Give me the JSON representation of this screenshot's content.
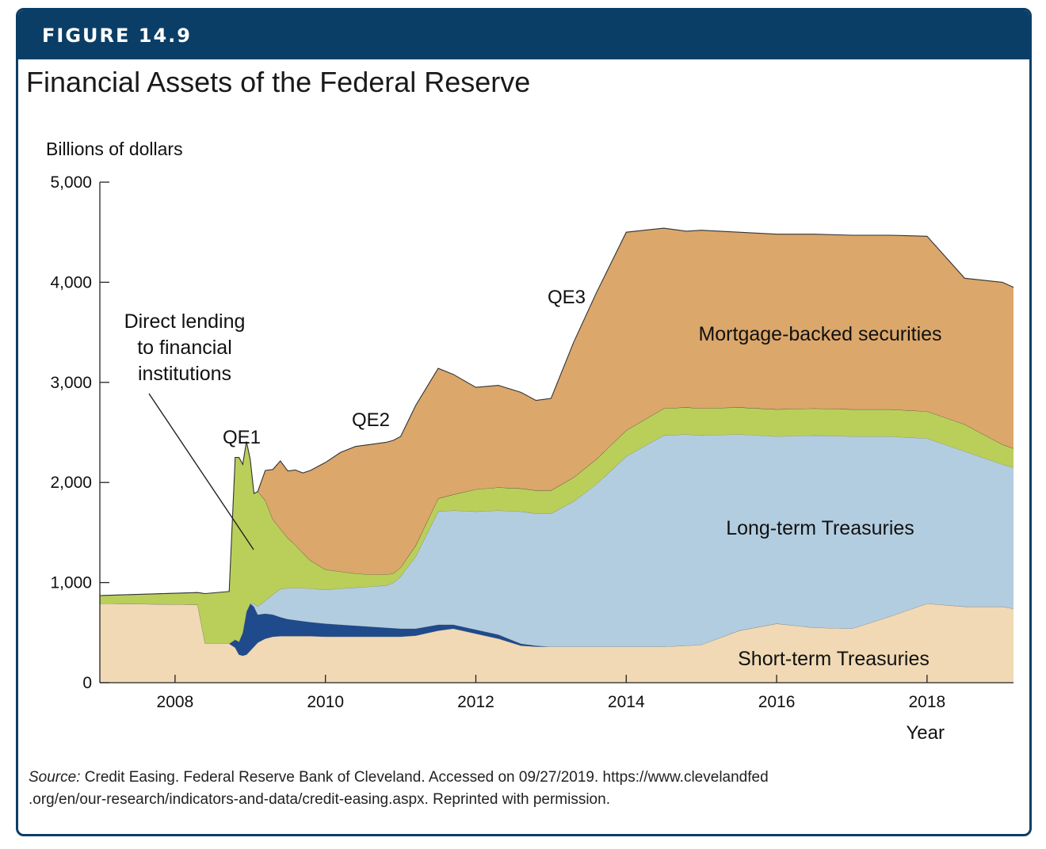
{
  "figure_label": "FIGURE 14.9",
  "source": {
    "label": "Source:",
    "text": "Credit Easing. Federal Reserve Bank of Cleveland. Accessed on 09/27/2019. https://www.clevelandfed",
    "text2": ".org/en/our-research/indicators-and-data/credit-easing.aspx. Reprinted with permission."
  },
  "colors": {
    "short_term": "#f0d9b4",
    "dark_blue": "#1f4a8c",
    "long_term": "#b3cde0",
    "green": "#b9cf5a",
    "mbs": "#dba76b",
    "frame": "#0b3e66"
  },
  "chart_data": {
    "type": "area",
    "stacked": true,
    "title": "Financial Assets of the Federal Reserve",
    "ylabel": "Billions of dollars",
    "xlabel": "Year",
    "xlim": [
      2007.0,
      2019.15
    ],
    "ylim": [
      0,
      5000
    ],
    "xticks": [
      2008,
      2010,
      2012,
      2014,
      2016,
      2018
    ],
    "yticks": [
      0,
      1000,
      2000,
      3000,
      4000,
      5000
    ],
    "ytick_labels": [
      "0",
      "1,000",
      "2,000",
      "3,000",
      "4,000",
      "5,000"
    ],
    "x": [
      2007.0,
      2008.3,
      2008.4,
      2008.7,
      2008.72,
      2008.8,
      2008.85,
      2008.9,
      2008.95,
      2009.0,
      2009.05,
      2009.1,
      2009.2,
      2009.3,
      2009.4,
      2009.5,
      2009.6,
      2009.7,
      2009.8,
      2010.0,
      2010.2,
      2010.4,
      2010.6,
      2010.8,
      2010.9,
      2011.0,
      2011.2,
      2011.5,
      2011.7,
      2012.0,
      2012.3,
      2012.6,
      2012.8,
      2013.0,
      2013.3,
      2013.6,
      2014.0,
      2014.5,
      2014.8,
      2015.0,
      2015.5,
      2016.0,
      2016.5,
      2017.0,
      2017.5,
      2018.0,
      2018.5,
      2019.0,
      2019.15
    ],
    "annotations": [
      "QE1",
      "QE2",
      "QE3",
      "Direct lending to financial institutions"
    ],
    "series": [
      {
        "name": "Short-term Treasuries",
        "values": [
          790,
          780,
          390,
          390,
          390,
          350,
          280,
          270,
          280,
          320,
          360,
          400,
          440,
          460,
          465,
          465,
          465,
          465,
          465,
          460,
          460,
          460,
          460,
          460,
          460,
          460,
          470,
          520,
          540,
          490,
          440,
          370,
          360,
          360,
          360,
          360,
          360,
          360,
          370,
          380,
          520,
          590,
          550,
          540,
          660,
          790,
          760,
          760,
          740
        ]
      },
      {
        "name": "",
        "values": [
          0,
          0,
          0,
          0,
          0,
          80,
          130,
          230,
          430,
          470,
          400,
          280,
          250,
          220,
          190,
          170,
          160,
          150,
          140,
          130,
          120,
          110,
          100,
          90,
          85,
          80,
          70,
          60,
          40,
          40,
          40,
          20,
          10,
          0,
          0,
          0,
          0,
          0,
          0,
          0,
          0,
          0,
          0,
          0,
          0,
          0,
          0,
          0,
          0
        ]
      },
      {
        "name": "Long-term Treasuries",
        "values": [
          0,
          0,
          0,
          0,
          0,
          0,
          0,
          0,
          0,
          0,
          30,
          80,
          130,
          200,
          280,
          310,
          320,
          330,
          335,
          340,
          360,
          380,
          400,
          420,
          450,
          520,
          720,
          1130,
          1140,
          1180,
          1240,
          1320,
          1320,
          1330,
          1450,
          1620,
          1900,
          2110,
          2110,
          2090,
          1960,
          1870,
          1920,
          1920,
          1800,
          1650,
          1550,
          1420,
          1410
        ]
      },
      {
        "name": "",
        "values": [
          80,
          120,
          500,
          520,
          520,
          1820,
          1840,
          1680,
          1700,
          1440,
          1100,
          1150,
          1000,
          750,
          600,
          500,
          430,
          350,
          280,
          200,
          170,
          140,
          120,
          110,
          95,
          90,
          110,
          130,
          160,
          220,
          230,
          230,
          230,
          230,
          240,
          250,
          260,
          270,
          270,
          270,
          270,
          270,
          270,
          270,
          270,
          270,
          270,
          200,
          190
        ]
      },
      {
        "name": "Mortgage-backed securities",
        "values": [
          0,
          0,
          0,
          0,
          0,
          0,
          0,
          0,
          0,
          0,
          0,
          0,
          300,
          500,
          680,
          670,
          750,
          800,
          900,
          1070,
          1190,
          1270,
          1300,
          1320,
          1330,
          1310,
          1400,
          1300,
          1200,
          1020,
          1020,
          960,
          900,
          920,
          1350,
          1660,
          1980,
          1800,
          1760,
          1780,
          1750,
          1750,
          1740,
          1740,
          1740,
          1750,
          1460,
          1620,
          1610
        ]
      }
    ]
  }
}
